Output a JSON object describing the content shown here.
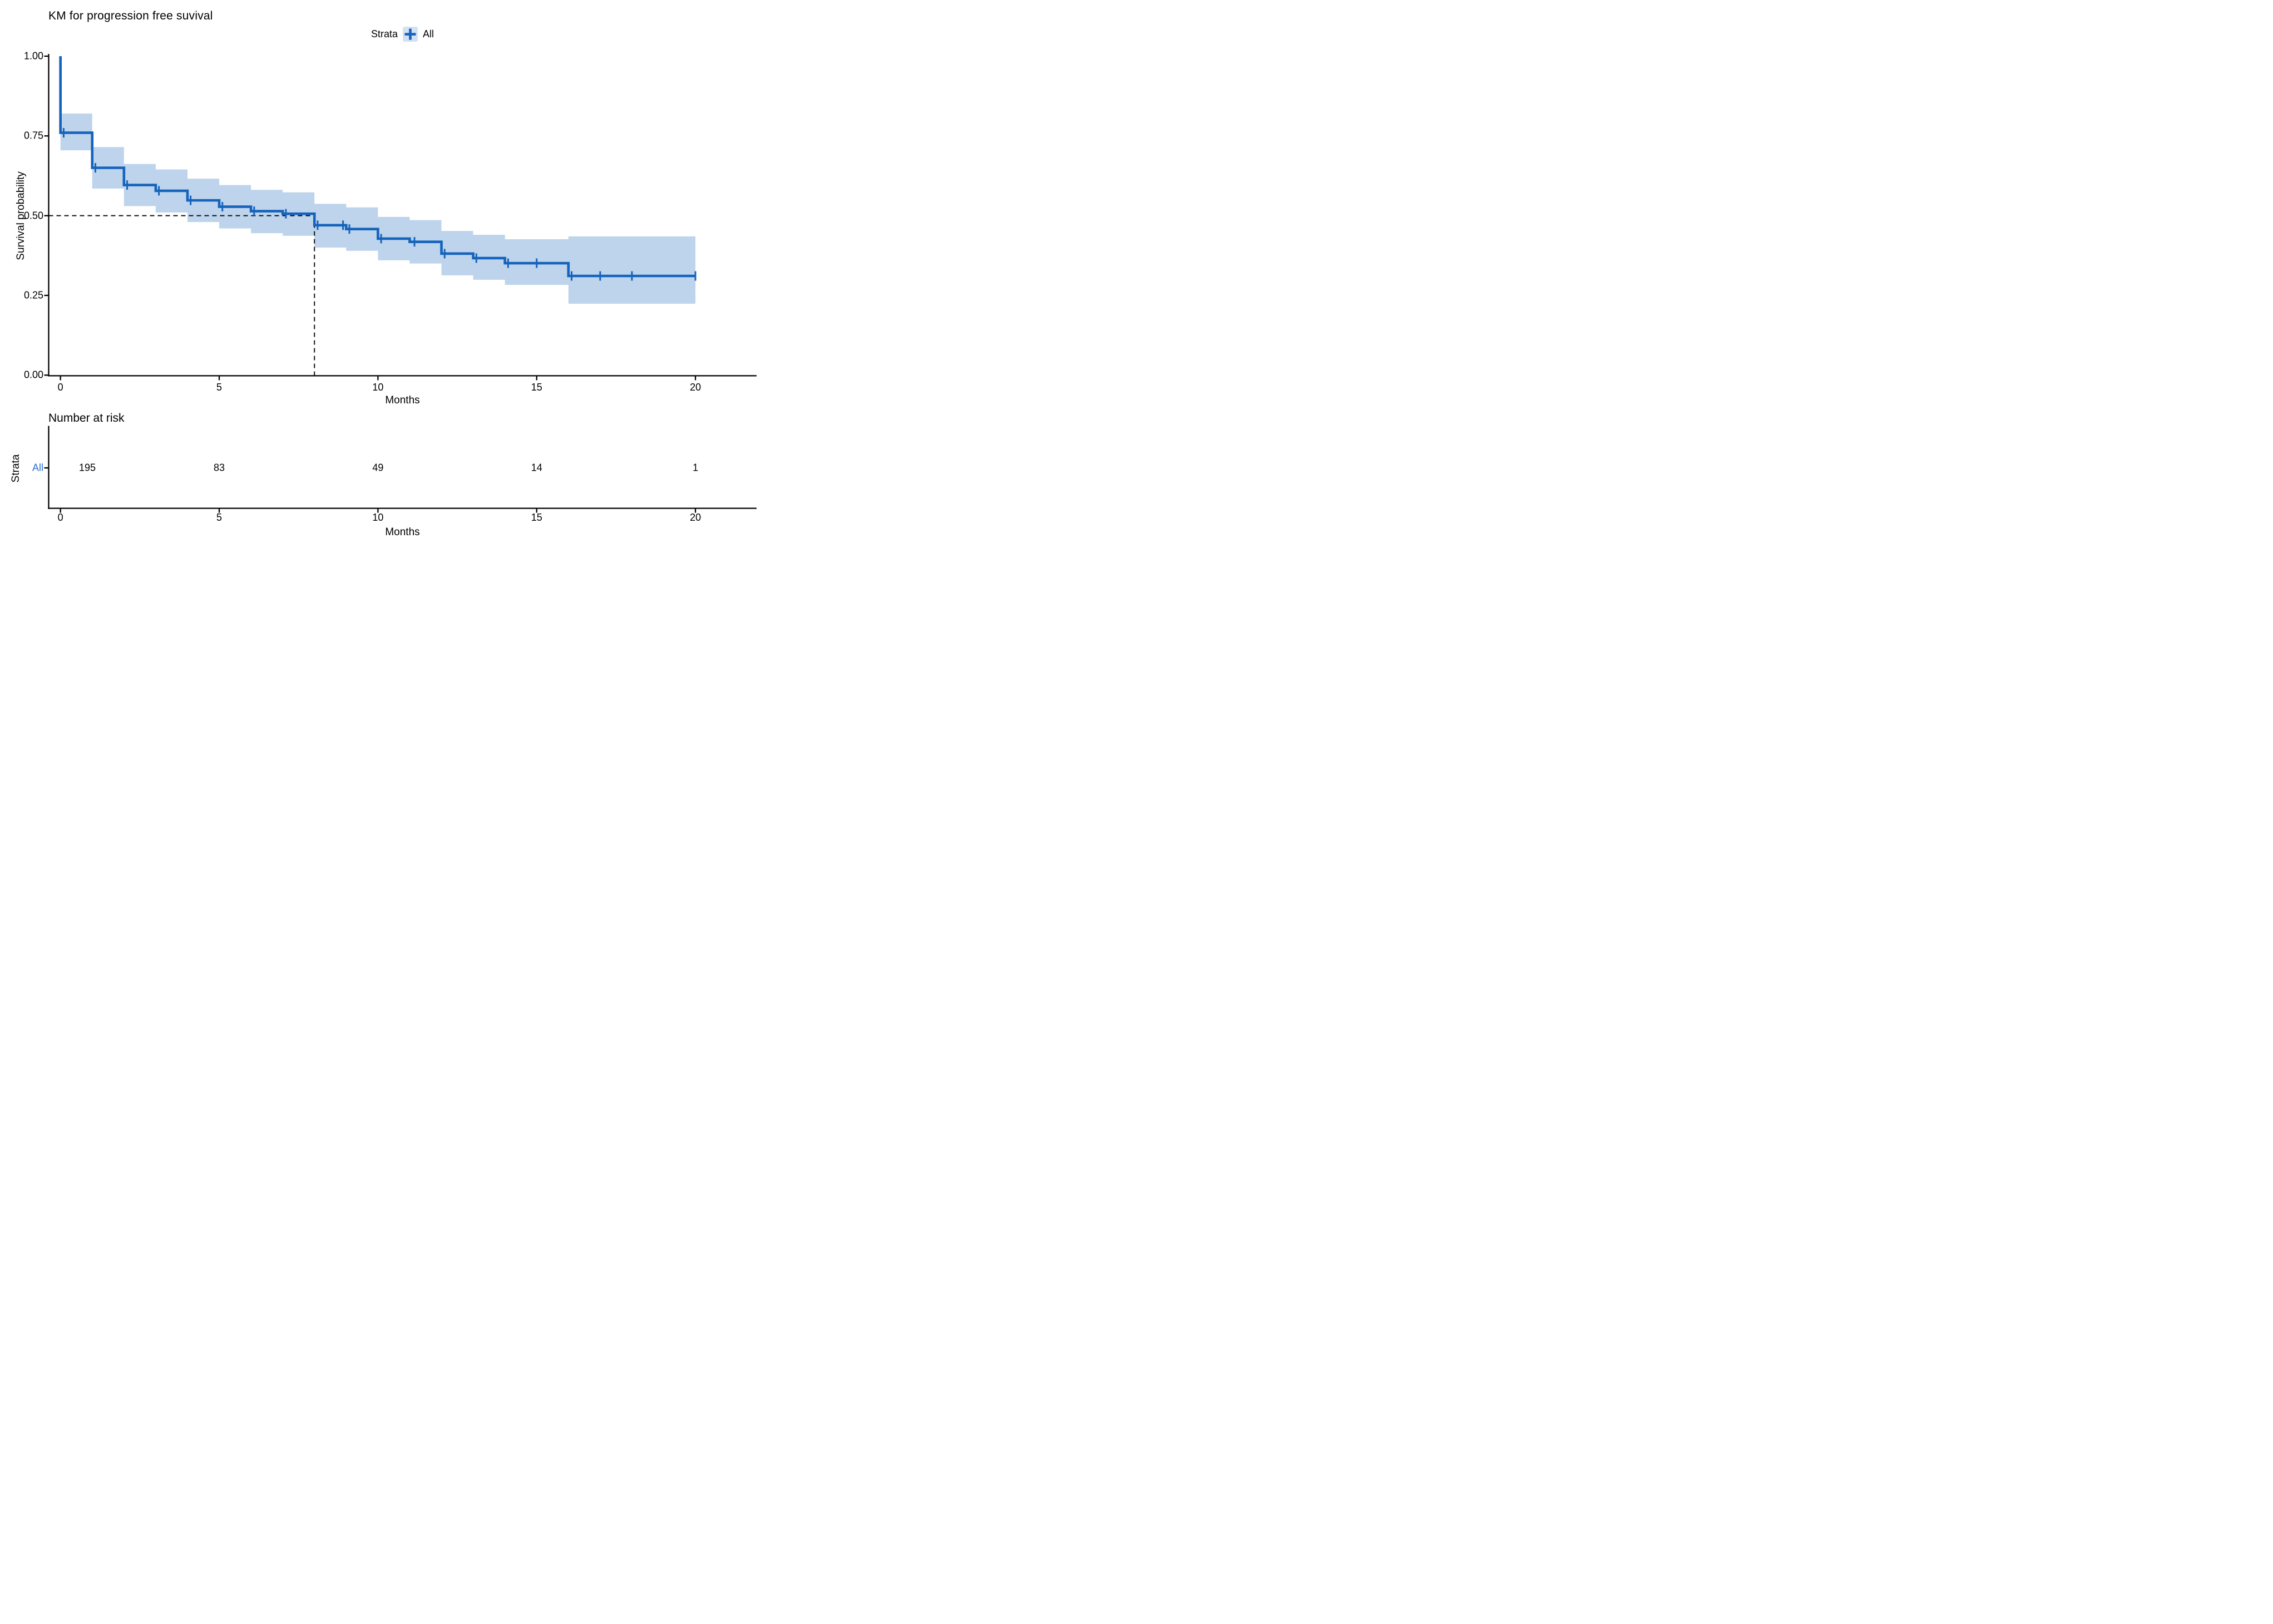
{
  "title": "KM for progression free suvival",
  "legend": {
    "label": "Strata",
    "item": "All"
  },
  "main_plot": {
    "ylabel": "Survival probability",
    "xlabel": "Months"
  },
  "risk_table": {
    "heading": "Number at risk",
    "axis_label": "Strata",
    "row_label": "All",
    "xlabel": "Months"
  },
  "colors": {
    "curve": "#1663bd",
    "ci_band": "#bdd4ec",
    "legend_key_bg": "#d2e2f3",
    "risk_row_label": "#2b6fd2",
    "axis": "#000000",
    "dashed": "#111111",
    "text": "#000000"
  },
  "chart_data": {
    "type": "line",
    "subtype": "kaplan-meier-step",
    "title": "KM for progression free suvival",
    "xlabel": "Months",
    "ylabel": "Survival probability",
    "xlim": [
      -0.4,
      21.9
    ],
    "ylim": [
      0,
      1
    ],
    "x_ticks": [
      0,
      5,
      10,
      15,
      20
    ],
    "x_tick_labels": [
      "0",
      "5",
      "10",
      "15",
      "20"
    ],
    "y_ticks": [
      0,
      0.25,
      0.5,
      0.75,
      1.0
    ],
    "y_tick_labels": [
      "0.00",
      "0.25",
      "0.50",
      "0.75",
      "1.00"
    ],
    "grid": false,
    "legend_position": "top-center",
    "series": [
      {
        "name": "All",
        "start": {
          "t": 0,
          "s": 1.0
        },
        "steps": [
          {
            "t0": 0,
            "t1": 1,
            "s": 0.76,
            "lo": 0.705,
            "hi": 0.82
          },
          {
            "t0": 1,
            "t1": 2,
            "s": 0.65,
            "lo": 0.585,
            "hi": 0.715
          },
          {
            "t0": 2,
            "t1": 3,
            "s": 0.596,
            "lo": 0.53,
            "hi": 0.662
          },
          {
            "t0": 3,
            "t1": 4,
            "s": 0.578,
            "lo": 0.51,
            "hi": 0.645
          },
          {
            "t0": 4,
            "t1": 5,
            "s": 0.548,
            "lo": 0.48,
            "hi": 0.616
          },
          {
            "t0": 5,
            "t1": 6,
            "s": 0.528,
            "lo": 0.46,
            "hi": 0.596
          },
          {
            "t0": 6,
            "t1": 7,
            "s": 0.514,
            "lo": 0.445,
            "hi": 0.581
          },
          {
            "t0": 7,
            "t1": 8,
            "s": 0.506,
            "lo": 0.437,
            "hi": 0.573
          },
          {
            "t0": 8,
            "t1": 9,
            "s": 0.47,
            "lo": 0.4,
            "hi": 0.537
          },
          {
            "t0": 9,
            "t1": 10,
            "s": 0.458,
            "lo": 0.39,
            "hi": 0.526
          },
          {
            "t0": 10,
            "t1": 11,
            "s": 0.428,
            "lo": 0.36,
            "hi": 0.496
          },
          {
            "t0": 11,
            "t1": 12,
            "s": 0.418,
            "lo": 0.35,
            "hi": 0.486
          },
          {
            "t0": 12,
            "t1": 13,
            "s": 0.381,
            "lo": 0.313,
            "hi": 0.452
          },
          {
            "t0": 13,
            "t1": 14,
            "s": 0.367,
            "lo": 0.299,
            "hi": 0.44
          },
          {
            "t0": 14,
            "t1": 16,
            "s": 0.351,
            "lo": 0.283,
            "hi": 0.426
          },
          {
            "t0": 16,
            "t1": 20,
            "s": 0.311,
            "lo": 0.224,
            "hi": 0.435
          }
        ],
        "censor_marks": [
          {
            "t": 0.1,
            "s": 0.76
          },
          {
            "t": 1.1,
            "s": 0.65
          },
          {
            "t": 2.1,
            "s": 0.596
          },
          {
            "t": 3.1,
            "s": 0.578
          },
          {
            "t": 4.1,
            "s": 0.548
          },
          {
            "t": 5.1,
            "s": 0.528
          },
          {
            "t": 6.1,
            "s": 0.514
          },
          {
            "t": 7.1,
            "s": 0.506
          },
          {
            "t": 8.1,
            "s": 0.47
          },
          {
            "t": 8.9,
            "s": 0.47
          },
          {
            "t": 9.1,
            "s": 0.458
          },
          {
            "t": 10.1,
            "s": 0.428
          },
          {
            "t": 11.15,
            "s": 0.418
          },
          {
            "t": 12.1,
            "s": 0.381
          },
          {
            "t": 13.1,
            "s": 0.367
          },
          {
            "t": 14.1,
            "s": 0.351
          },
          {
            "t": 15.0,
            "s": 0.351
          },
          {
            "t": 16.1,
            "s": 0.311
          },
          {
            "t": 17.0,
            "s": 0.311
          },
          {
            "t": 18.0,
            "s": 0.311
          },
          {
            "t": 20.0,
            "s": 0.311
          }
        ]
      }
    ],
    "median_annotation": {
      "time": 8,
      "survival": 0.5
    },
    "risk_table": {
      "strata": "All",
      "times": [
        0,
        5,
        10,
        15,
        20
      ],
      "at_risk": [
        "195",
        "83",
        "49",
        "14",
        "1"
      ]
    }
  }
}
